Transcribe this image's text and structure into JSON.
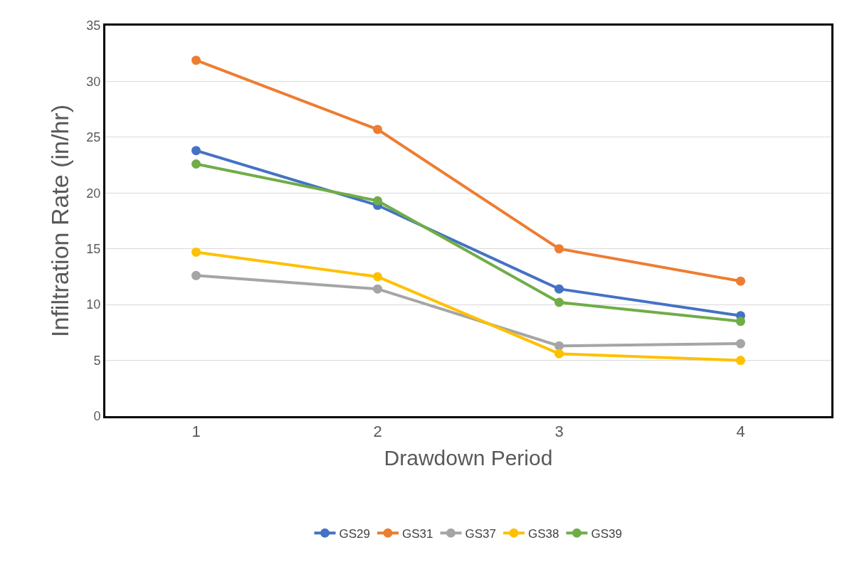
{
  "chart_data": {
    "type": "line",
    "xlabel": "Drawdown Period",
    "ylabel": "Infiltration Rate (in/hr)",
    "categories": [
      "1",
      "2",
      "3",
      "4"
    ],
    "series": [
      {
        "name": "GS29",
        "color": "#4472c4",
        "values": [
          23.8,
          18.9,
          11.4,
          9.0
        ]
      },
      {
        "name": "GS31",
        "color": "#ed7d31",
        "values": [
          31.9,
          25.7,
          15.0,
          12.1
        ]
      },
      {
        "name": "GS37",
        "color": "#a5a5a5",
        "values": [
          12.6,
          11.4,
          6.3,
          6.5
        ]
      },
      {
        "name": "GS38",
        "color": "#ffc000",
        "values": [
          14.7,
          12.5,
          5.6,
          5.0
        ]
      },
      {
        "name": "GS39",
        "color": "#70ad47",
        "values": [
          22.6,
          19.3,
          10.2,
          8.5
        ]
      }
    ],
    "ylim": [
      0,
      35
    ],
    "yticks": [
      0,
      5,
      10,
      15,
      20,
      25,
      30,
      35
    ],
    "grid": "y",
    "legend": "bottom",
    "marker": "circle",
    "line_style": "solid"
  }
}
